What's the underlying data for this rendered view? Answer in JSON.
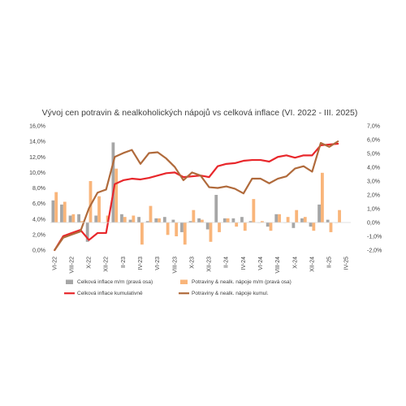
{
  "chart_data": {
    "type": "bar",
    "title": "Vývoj cen potravin & nealkoholických nápojů vs celková inflace (VI. 2022 - III. 2025)",
    "left_axis": {
      "ylim": [
        0,
        16
      ],
      "ticks": [
        "0,0%",
        "2,0%",
        "4,0%",
        "6,0%",
        "8,0%",
        "10,0%",
        "12,0%",
        "14,0%",
        "16,0%"
      ]
    },
    "right_axis": {
      "ylim": [
        -2,
        7
      ],
      "ticks": [
        "-2,0%",
        "-1,0%",
        "0,0%",
        "1,0%",
        "2,0%",
        "3,0%",
        "4,0%",
        "5,0%",
        "6,0%",
        "7,0%"
      ]
    },
    "x_tick_labels": [
      "VI-22",
      "VIII-22",
      "X-22",
      "XII-22",
      "II-23",
      "IV-23",
      "VI-23",
      "VIII-23",
      "X-23",
      "XII-23",
      "II-24",
      "IV-24",
      "VI-24",
      "VIII-24",
      "X-24",
      "XII-24",
      "II-25",
      "IV-25"
    ],
    "categories": [
      "VI-22",
      "VII-22",
      "VIII-22",
      "IX-22",
      "X-22",
      "XI-22",
      "XII-22",
      "I-23",
      "II-23",
      "III-23",
      "IV-23",
      "V-23",
      "VI-23",
      "VII-23",
      "VIII-23",
      "IX-23",
      "X-23",
      "XI-23",
      "XII-23",
      "I-24",
      "II-24",
      "III-24",
      "IV-24",
      "V-24",
      "VI-24",
      "VII-24",
      "VIII-24",
      "IX-24",
      "X-24",
      "XI-24",
      "XII-24",
      "I-25",
      "II-25",
      "III-25",
      "IV-25"
    ],
    "series": [
      {
        "name": "Celková inflace m/m (pravá osa)",
        "kind": "bar",
        "axis": "right",
        "color": "#a6a6a6",
        "values": [
          1.6,
          1.3,
          0.5,
          0.6,
          -1.4,
          0.5,
          0.0,
          5.8,
          0.6,
          0.2,
          0.4,
          0.1,
          0.3,
          0.4,
          0.2,
          -0.7,
          0.1,
          0.3,
          -0.5,
          2.0,
          0.3,
          0.3,
          0.4,
          0.1,
          0.0,
          -0.3,
          0.6,
          0.0,
          -0.4,
          0.3,
          -0.3,
          1.3,
          0.2,
          0.0,
          null
        ]
      },
      {
        "name": "Potraviny & nealk. nápoje m/m (pravá osa)",
        "kind": "bar",
        "axis": "right",
        "color": "#f9b57a",
        "values": [
          2.2,
          1.5,
          0.6,
          0.1,
          3.0,
          1.9,
          0.5,
          3.9,
          0.4,
          0.5,
          -1.6,
          1.2,
          0.3,
          -0.9,
          -1.0,
          -1.6,
          0.9,
          0.2,
          -1.4,
          -0.7,
          0.3,
          -0.3,
          -0.6,
          1.7,
          0.1,
          -0.6,
          0.6,
          0.4,
          0.9,
          0.4,
          -0.6,
          3.6,
          -0.7,
          0.9,
          null
        ]
      },
      {
        "name": "Celková inflace kumulativně",
        "kind": "line",
        "axis": "left",
        "color": "#e8272b",
        "values": [
          0.0,
          1.8,
          2.2,
          2.6,
          1.3,
          2.2,
          2.2,
          8.5,
          9.0,
          9.2,
          9.1,
          9.3,
          9.6,
          9.9,
          10.0,
          9.4,
          9.5,
          9.6,
          9.4,
          10.8,
          11.1,
          11.2,
          11.5,
          11.6,
          11.6,
          11.4,
          12.0,
          12.2,
          11.9,
          12.2,
          12.2,
          13.5,
          13.6,
          13.7,
          null
        ]
      },
      {
        "name": "Potraviny & nealk. nápoje kumul.",
        "kind": "line",
        "axis": "left",
        "color": "#b06a3b",
        "values": [
          0.0,
          1.6,
          2.0,
          2.4,
          5.4,
          7.4,
          7.8,
          12.0,
          12.5,
          12.9,
          11.1,
          12.5,
          12.6,
          11.8,
          10.7,
          9.0,
          10.0,
          9.6,
          8.1,
          8.0,
          8.2,
          7.9,
          7.3,
          9.2,
          9.2,
          8.6,
          9.2,
          9.5,
          10.5,
          10.8,
          10.1,
          13.8,
          13.3,
          14.0,
          null
        ]
      }
    ],
    "legend_position": "bottom",
    "grid": false
  }
}
